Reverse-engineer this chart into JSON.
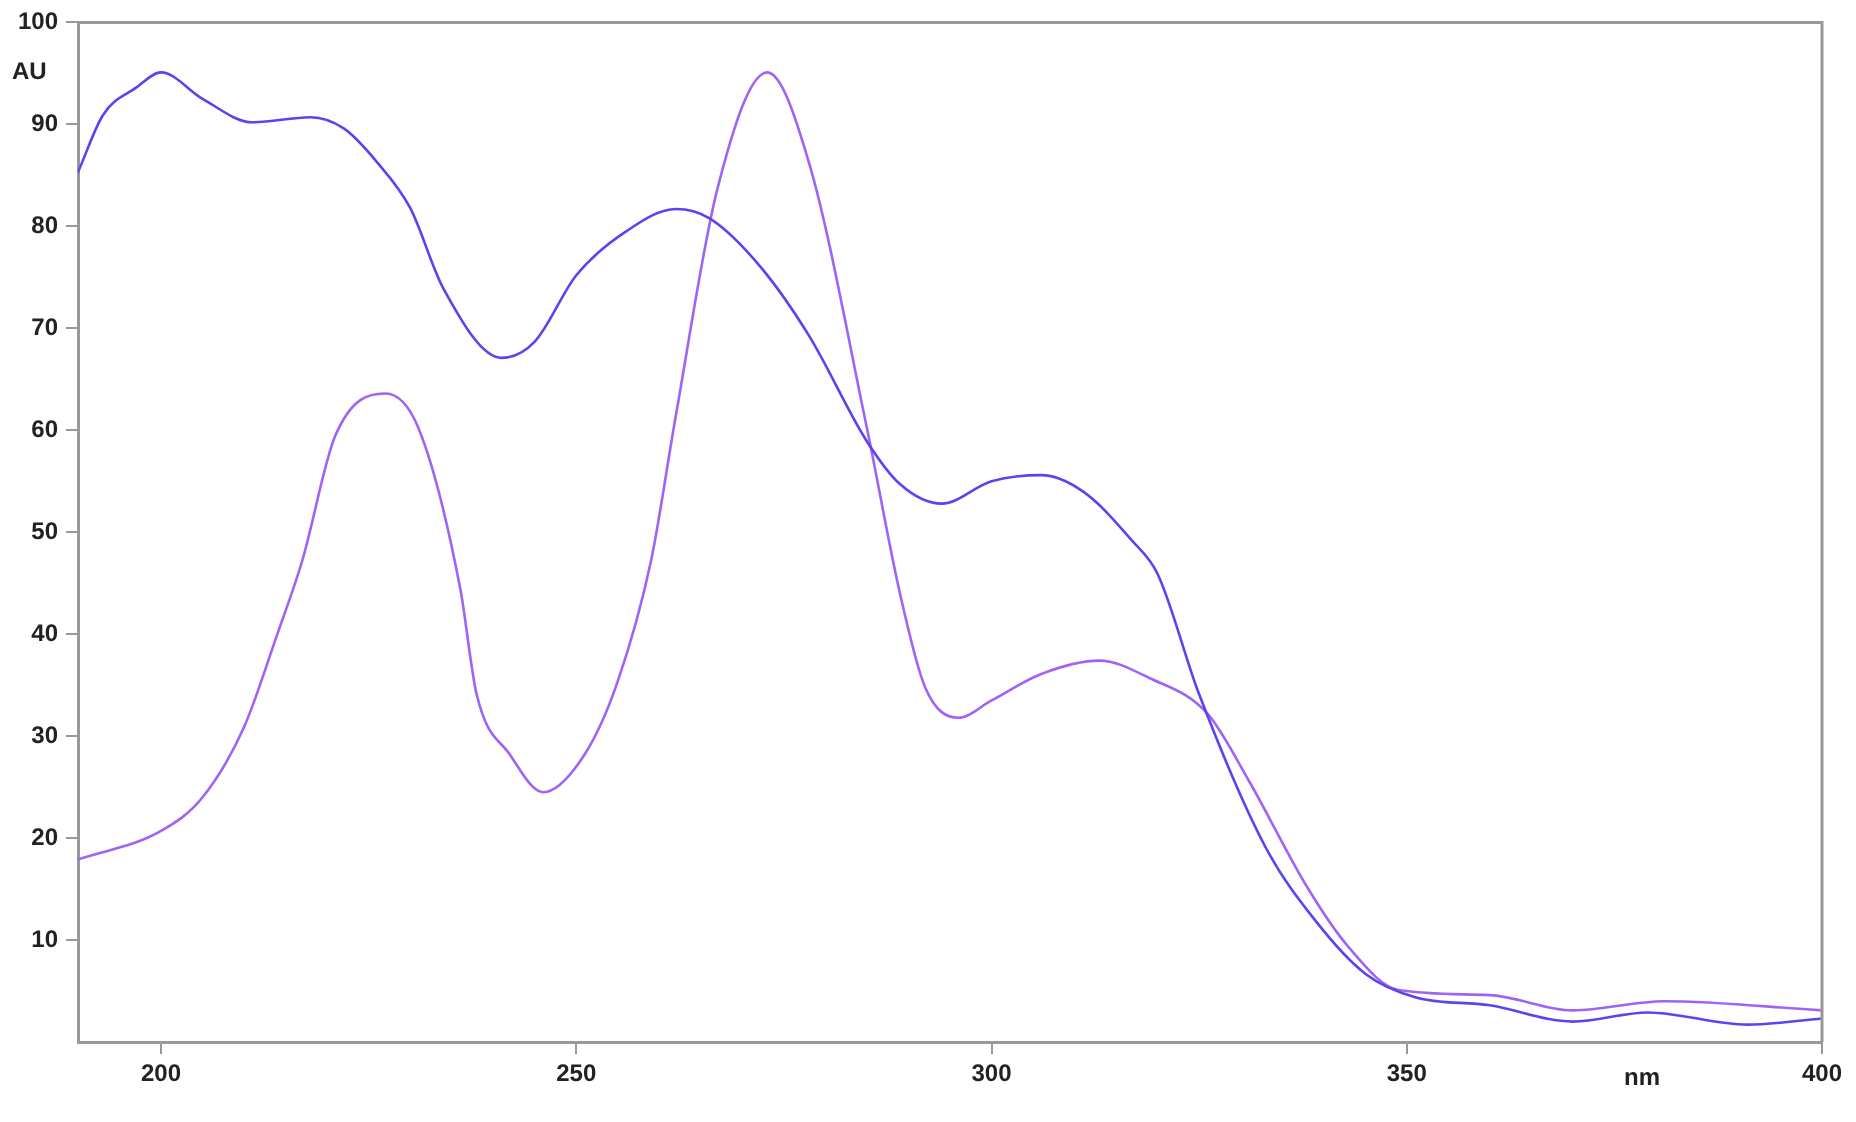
{
  "chart_data": {
    "type": "line",
    "xlabel": "nm",
    "ylabel": "AU",
    "xlim": [
      190,
      400
    ],
    "xticks": [
      200,
      250,
      300,
      350,
      400
    ],
    "ylim": [
      0,
      100
    ],
    "yticks": [
      10,
      20,
      30,
      40,
      50,
      60,
      70,
      80,
      90,
      100
    ],
    "grid": false,
    "legend": false,
    "marker": "none",
    "line_style": "solid",
    "series": [
      {
        "color": "#5b44f0",
        "x": [
          190,
          193,
          197,
          200,
          205,
          211,
          218,
          222,
          226,
          230,
          234,
          241,
          245,
          250,
          256,
          262,
          266,
          272,
          278,
          285,
          289,
          294,
          300,
          306,
          311,
          317,
          320,
          325,
          333,
          339,
          345,
          351,
          360,
          370,
          379,
          391,
          400
        ],
        "values": [
          85.3,
          90.9,
          93.6,
          95.1,
          92.5,
          90.2,
          90.7,
          89.6,
          86.3,
          81.8,
          73.9,
          67.1,
          68.7,
          75.2,
          79.5,
          81.7,
          80.8,
          76.2,
          69.3,
          58.9,
          54.7,
          52.8,
          55.0,
          55.6,
          54.0,
          49.1,
          45.9,
          34.1,
          19.1,
          11.9,
          6.7,
          4.4,
          3.6,
          2.0,
          2.9,
          1.7,
          2.3
        ]
      },
      {
        "color": "#a064f5",
        "x": [
          190,
          200,
          205,
          210,
          214,
          217,
          221,
          227,
          231,
          236,
          238,
          242,
          246,
          251,
          255,
          259,
          262,
          267,
          273,
          278,
          285,
          289,
          292,
          296,
          300,
          306,
          313,
          319,
          326,
          331,
          338,
          343,
          349,
          360,
          370,
          381,
          400
        ],
        "values": [
          17.9,
          20.7,
          24.0,
          30.9,
          40.0,
          47.2,
          59.5,
          63.6,
          60.2,
          44.6,
          34.1,
          28.2,
          24.5,
          28.2,
          35.4,
          47.2,
          61.5,
          83.7,
          95.1,
          86.3,
          60.2,
          43.9,
          34.8,
          31.8,
          33.5,
          36.1,
          37.4,
          35.7,
          32.2,
          25.6,
          15.2,
          9.3,
          5.1,
          4.6,
          3.1,
          4.0,
          3.1
        ]
      }
    ]
  }
}
